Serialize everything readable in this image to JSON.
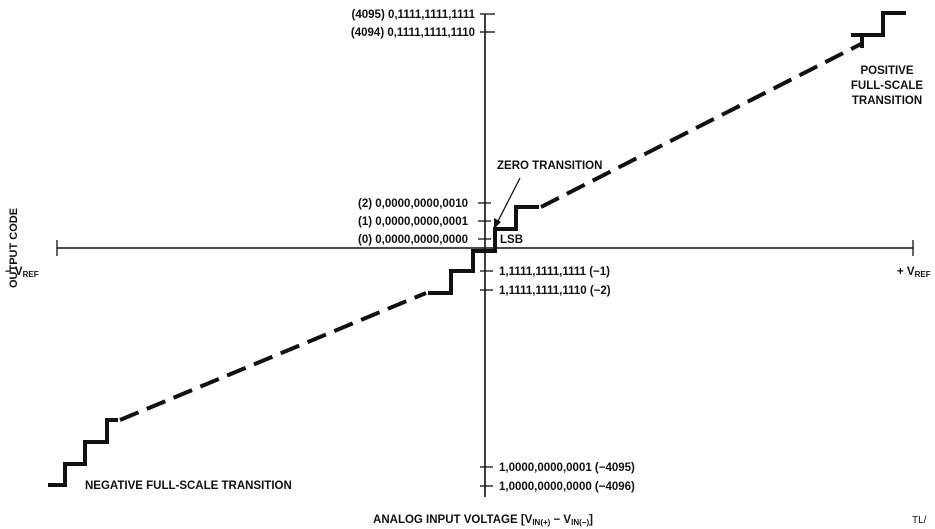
{
  "y_axis_title": "OUTPUT CODE",
  "x_axis_title": "ANALOG INPUT VOLTAGE [V",
  "x_axis_title_sub1": "IN(+)",
  "x_axis_title_mid": " − V",
  "x_axis_title_sub2": "IN(−)",
  "x_axis_title_end": "]",
  "neg_vref": "− V",
  "neg_vref_sub": "REF",
  "pos_vref": "+ V",
  "pos_vref_sub": "REF",
  "codes_upper": [
    "(4095) 0,1111,1111,1111",
    "(4094) 0,1111,1111,1110",
    "(2) 0,0000,0000,0010",
    "(1) 0,0000,0000,0001",
    "(0) 0,0000,0000,0000"
  ],
  "codes_lower": [
    "1,1111,1111,1111 (−1)",
    "1,1111,1111,1110 (−2)",
    "1,0000,0000,0001 (−4095)",
    "1,0000,0000,0000 (−4096)"
  ],
  "notes": {
    "zero_transition": "ZERO TRANSITION",
    "lsb": "LSB",
    "positive_fs": [
      "POSITIVE",
      "FULL-SCALE",
      "TRANSITION"
    ],
    "negative_fs": "NEGATIVE FULL-SCALE TRANSITION"
  },
  "figure_ref": "TL/"
}
